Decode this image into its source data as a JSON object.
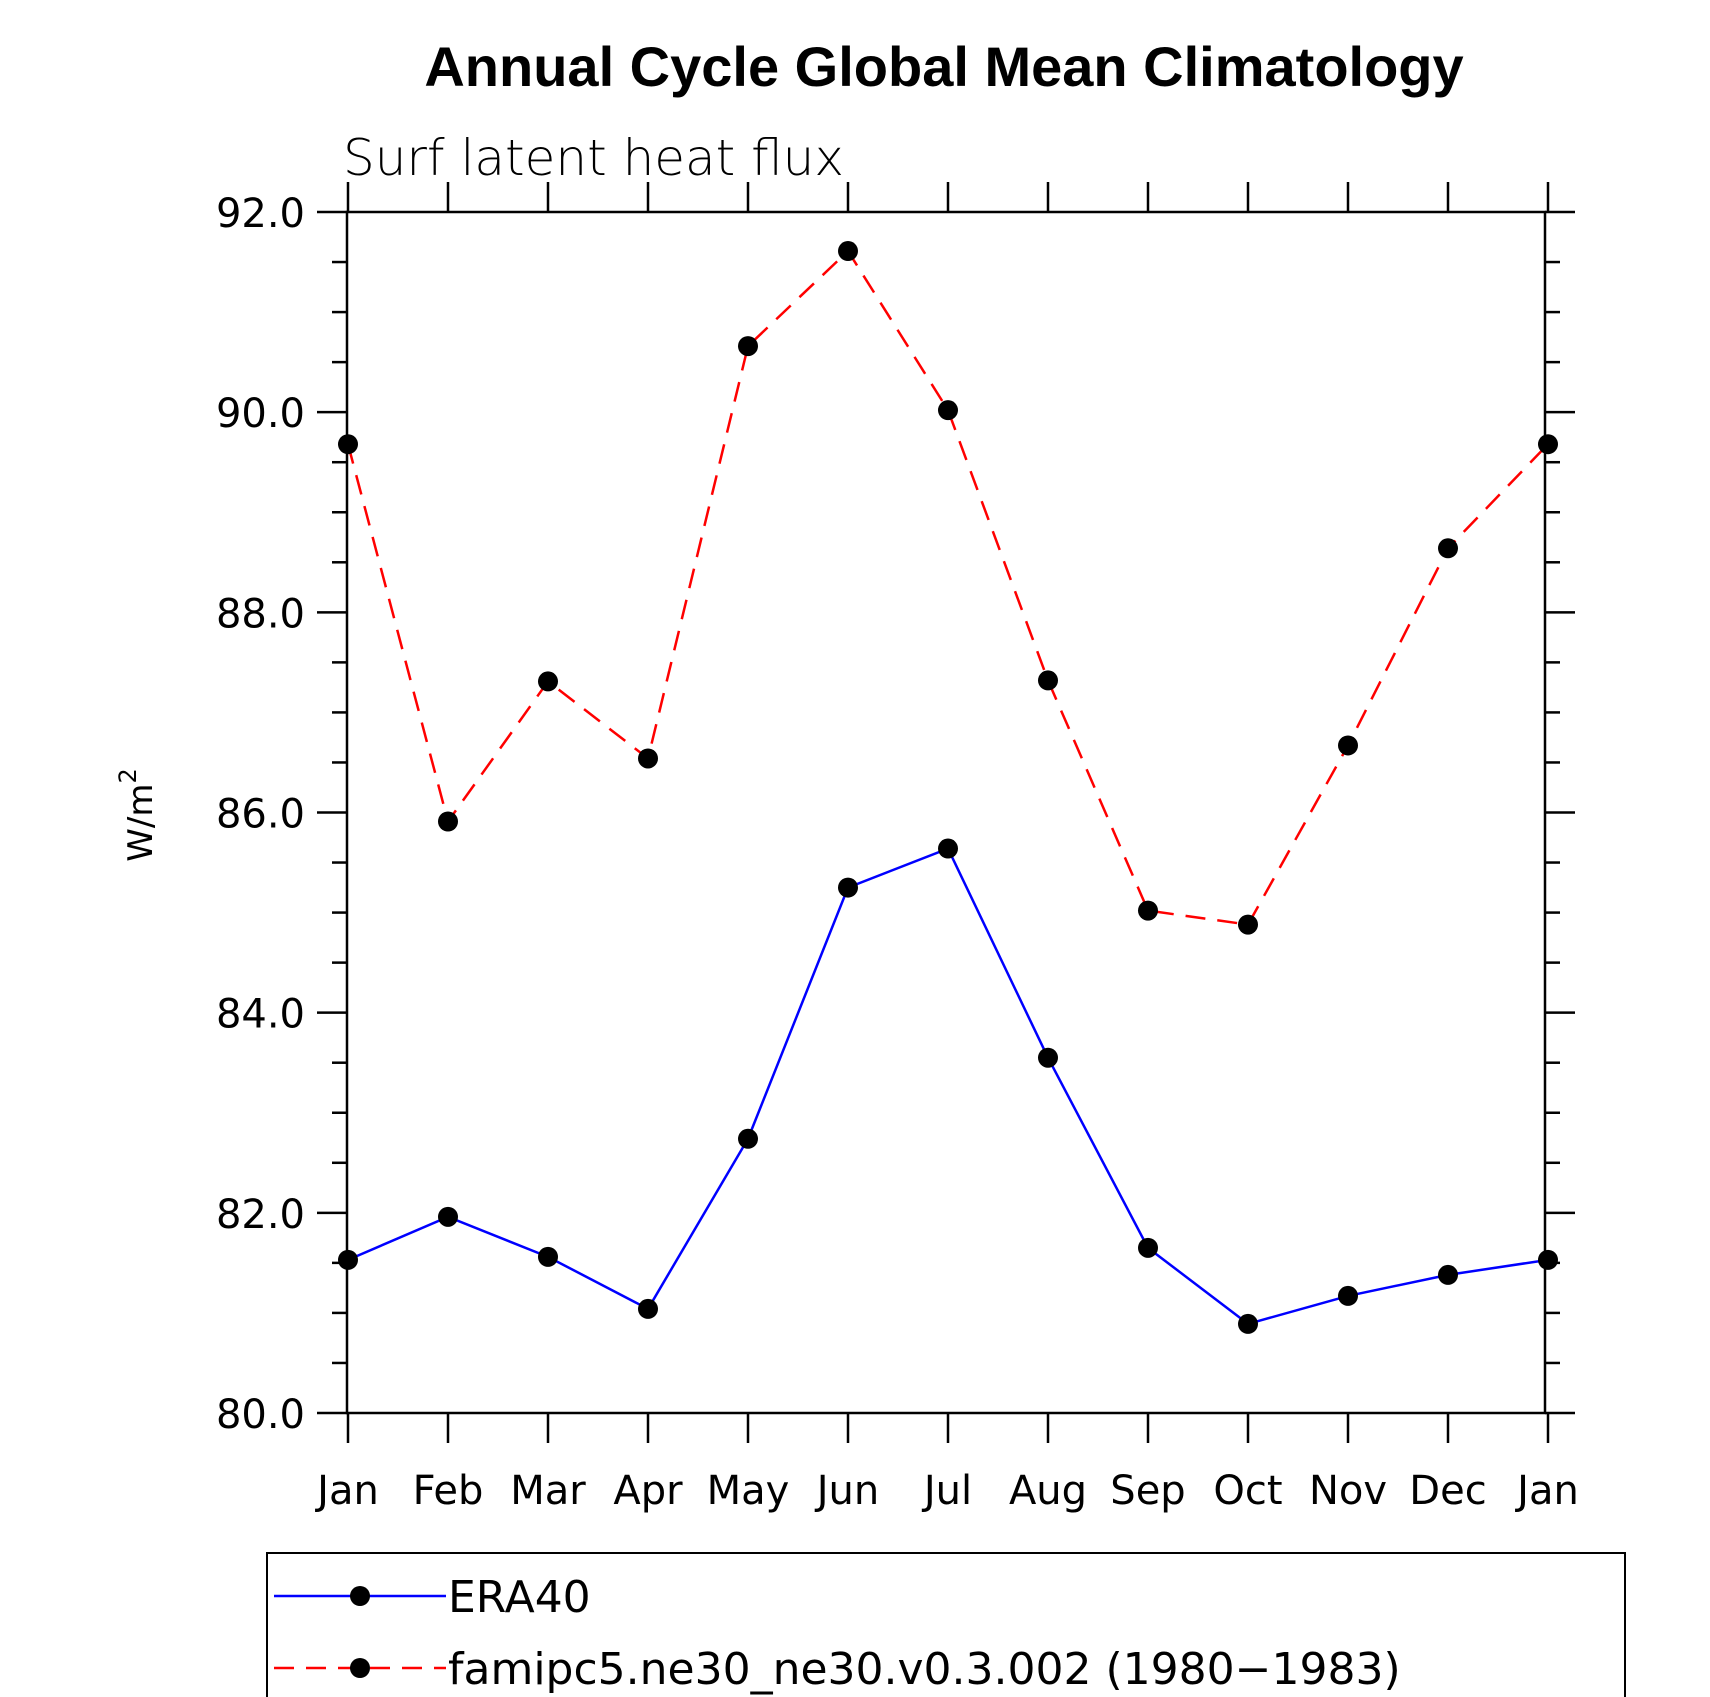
{
  "chart_data": {
    "type": "line",
    "title": "Annual Cycle Global Mean Climatology",
    "subtitle": "Surf latent heat flux",
    "ylabel": "W/m",
    "ylabel_superscript": "2",
    "ylim": [
      80.0,
      92.0
    ],
    "yticks": [
      "80.0",
      "82.0",
      "84.0",
      "86.0",
      "88.0",
      "90.0",
      "92.0"
    ],
    "categories": [
      "Jan",
      "Feb",
      "Mar",
      "Apr",
      "May",
      "Jun",
      "Jul",
      "Aug",
      "Sep",
      "Oct",
      "Nov",
      "Dec",
      "Jan"
    ],
    "series": [
      {
        "name": "ERA40",
        "color": "#0000ff",
        "dash": "solid",
        "values": [
          81.53,
          81.96,
          81.56,
          81.04,
          82.74,
          85.25,
          85.64,
          83.55,
          81.65,
          80.89,
          81.17,
          81.38,
          81.53
        ]
      },
      {
        "name": "famipc5.ne30_ne30.v0.3.002 (1980−1983)",
        "color": "#ff0000",
        "dash": "dashed",
        "values": [
          89.68,
          85.91,
          87.31,
          86.54,
          90.66,
          91.61,
          90.02,
          87.32,
          85.02,
          84.88,
          86.67,
          88.64,
          89.68
        ]
      }
    ],
    "legend_position": "bottom",
    "grid": false
  }
}
